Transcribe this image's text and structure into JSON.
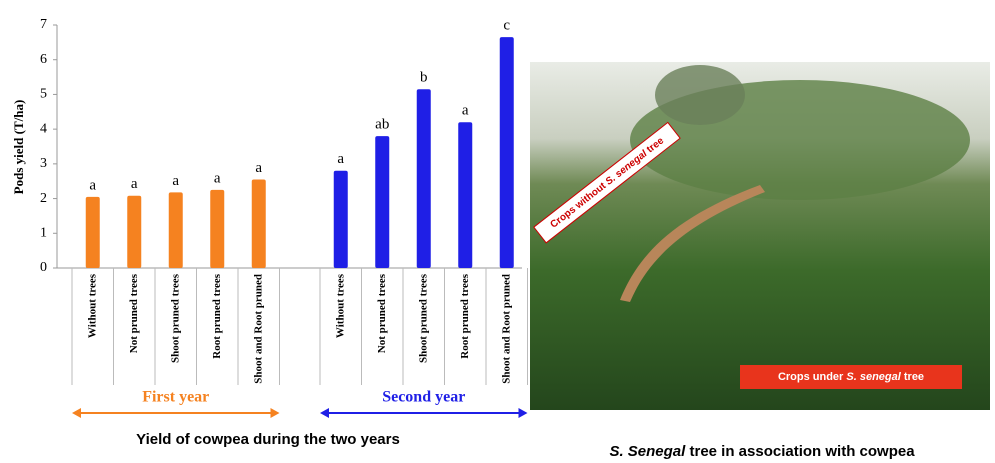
{
  "chart_data": {
    "type": "bar",
    "ylabel": "Pods yield (T/ha)",
    "ylim": [
      0,
      7
    ],
    "yticks": [
      0,
      1,
      2,
      3,
      4,
      5,
      6,
      7
    ],
    "groups": [
      {
        "name": "First year",
        "color": "#f58220",
        "categories": [
          "Without trees",
          "Not pruned trees",
          "Shoot pruned trees",
          "Root pruned trees",
          "Shoot and Root pruned"
        ],
        "values": [
          2.05,
          2.08,
          2.18,
          2.25,
          2.55
        ],
        "letters": [
          "a",
          "a",
          "a",
          "a",
          "a"
        ]
      },
      {
        "name": "Second year",
        "color": "#1f1fe6",
        "categories": [
          "Without trees",
          "Not pruned trees",
          "Shoot pruned trees",
          "Root pruned trees",
          "Shoot and Root pruned"
        ],
        "values": [
          2.8,
          3.8,
          5.15,
          4.2,
          6.65
        ],
        "letters": [
          "a",
          "ab",
          "b",
          "a",
          "c"
        ]
      }
    ],
    "caption": "Yield of cowpea during the two years"
  },
  "photo": {
    "label_without": [
      "Crops without ",
      "S. senegal",
      " tree"
    ],
    "label_under": [
      "Crops under ",
      "S. senegal",
      " tree"
    ],
    "caption": [
      "S. Senegal",
      " tree in association with cowpea"
    ]
  }
}
